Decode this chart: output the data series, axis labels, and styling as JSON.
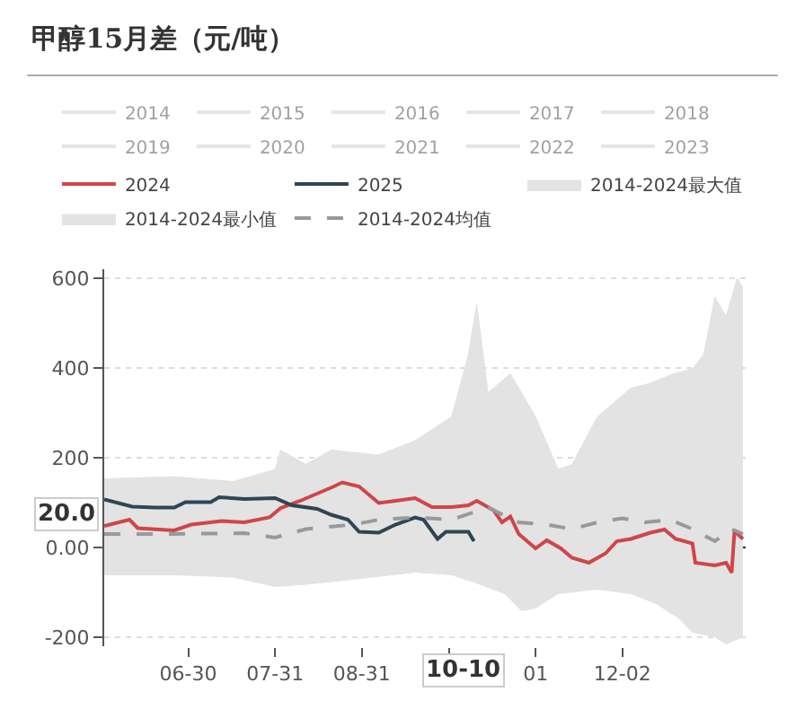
{
  "chart_data": {
    "type": "line",
    "title": "甲醇15月差（元/吨）",
    "ylim": [
      -220,
      620
    ],
    "yticks": [
      -200,
      {
        "value": 0,
        "label": "0.00"
      },
      200,
      400,
      600
    ],
    "xlim": [
      "2024-05-31",
      "2025-01-15"
    ],
    "xticks": [
      {
        "value": "2024-06-30",
        "label": "06-30"
      },
      {
        "value": "2024-07-31",
        "label": "07-31"
      },
      {
        "value": "2024-08-31",
        "label": "08-31"
      },
      {
        "value": "2024-10-01",
        "label": null
      },
      {
        "value": "2024-11-01",
        "label": "01"
      },
      {
        "value": "2024-12-02",
        "label": "12-02"
      }
    ],
    "grid": "y",
    "legend": "top",
    "marker": "none",
    "annotations": [
      "20.0",
      "10-10"
    ],
    "series": [
      {
        "name": "2014",
        "color": "#cccccc"
      },
      {
        "name": "2015",
        "color": "#cccccc"
      },
      {
        "name": "2016",
        "color": "#cccccc"
      },
      {
        "name": "2017",
        "color": "#cccccc"
      },
      {
        "name": "2018",
        "color": "#cccccc"
      },
      {
        "name": "2019",
        "color": "#cccccc"
      },
      {
        "name": "2020",
        "color": "#cccccc"
      },
      {
        "name": "2021",
        "color": "#cccccc"
      },
      {
        "name": "2022",
        "color": "#cccccc"
      },
      {
        "name": "2023",
        "color": "#cccccc"
      },
      {
        "name": "2024",
        "color": "#d0454a",
        "x": [
          "2024-05-31",
          "2024-06-09",
          "2024-06-12",
          "2024-06-25",
          "2024-07-01",
          "2024-07-12",
          "2024-07-20",
          "2024-07-29",
          "2024-08-02",
          "2024-08-09",
          "2024-08-15",
          "2024-08-21",
          "2024-08-24",
          "2024-08-30",
          "2024-09-06",
          "2024-09-12",
          "2024-09-19",
          "2024-09-25",
          "2024-10-02",
          "2024-10-08",
          "2024-10-11",
          "2024-10-17",
          "2024-10-20",
          "2024-10-23",
          "2024-10-26",
          "2024-11-01",
          "2024-11-05",
          "2024-11-10",
          "2024-11-14",
          "2024-11-20",
          "2024-11-26",
          "2024-11-30",
          "2024-12-05",
          "2024-12-12",
          "2024-12-17",
          "2024-12-21",
          "2024-12-27",
          "2024-12-28",
          "2025-01-04",
          "2025-01-08",
          "2025-01-10",
          "2025-01-11",
          "2025-01-14"
        ],
        "values": [
          48,
          62,
          43,
          38,
          51,
          59,
          56,
          67,
          88,
          104,
          120,
          136,
          145,
          136,
          99,
          104,
          110,
          90,
          90,
          94,
          104,
          83,
          56,
          69,
          30,
          -2,
          16,
          -2,
          -23,
          -34,
          -13,
          14,
          19,
          33,
          40,
          19,
          9,
          -34,
          -40,
          -34,
          -56,
          37,
          19
        ]
      },
      {
        "name": "2025",
        "color": "#2f4554",
        "x": [
          "2024-05-31",
          "2024-06-10",
          "2024-06-18",
          "2024-06-25",
          "2024-06-29",
          "2024-07-08",
          "2024-07-11",
          "2024-07-20",
          "2024-07-31",
          "2024-08-06",
          "2024-08-15",
          "2024-08-20",
          "2024-08-26",
          "2024-08-30",
          "2024-09-06",
          "2024-09-12",
          "2024-09-19",
          "2024-09-22",
          "2024-09-27",
          "2024-09-30",
          "2024-10-08",
          "2024-10-10"
        ],
        "values": [
          107,
          91,
          89,
          89,
          101,
          101,
          112,
          108,
          110,
          94,
          86,
          73,
          62,
          35,
          33,
          51,
          67,
          62,
          19,
          35,
          35,
          14
        ]
      },
      {
        "name": "2014-2024最大值",
        "type": "area",
        "color": "#e3e3e3",
        "x": [
          "2024-05-31",
          "2024-06-25",
          "2024-07-16",
          "2024-07-31",
          "2024-08-02",
          "2024-08-11",
          "2024-08-20",
          "2024-09-06",
          "2024-09-19",
          "2024-10-02",
          "2024-10-08",
          "2024-10-11",
          "2024-10-15",
          "2024-10-23",
          "2024-11-01",
          "2024-11-09",
          "2024-11-14",
          "2024-11-23",
          "2024-12-05",
          "2024-12-12",
          "2024-12-20",
          "2024-12-27",
          "2024-12-31",
          "2025-01-04",
          "2025-01-08",
          "2025-01-12",
          "2025-01-14"
        ],
        "values": [
          153,
          158,
          147,
          174,
          217,
          185,
          217,
          206,
          238,
          291,
          430,
          542,
          345,
          387,
          291,
          174,
          185,
          291,
          355,
          366,
          387,
          398,
          430,
          558,
          515,
          600,
          579
        ]
      },
      {
        "name": "2014-2024最小值",
        "type": "area",
        "color": "#e3e3e3",
        "x": [
          "2024-05-31",
          "2024-06-25",
          "2024-07-16",
          "2024-07-31",
          "2024-08-11",
          "2024-08-28",
          "2024-09-19",
          "2024-10-02",
          "2024-10-10",
          "2024-10-21",
          "2024-10-27",
          "2024-11-01",
          "2024-11-09",
          "2024-11-23",
          "2024-12-05",
          "2024-12-14",
          "2024-12-22",
          "2024-12-27",
          "2025-01-04",
          "2025-01-08",
          "2025-01-14"
        ],
        "values": [
          -61,
          -61,
          -66,
          -87,
          -82,
          -71,
          -55,
          -61,
          -77,
          -103,
          -141,
          -135,
          -103,
          -93,
          -103,
          -125,
          -157,
          -189,
          -199,
          -215,
          -199
        ]
      },
      {
        "name": "2014-2024均值",
        "color": "#999999",
        "line_style": "dashed",
        "x": [
          "2024-05-31",
          "2024-06-25",
          "2024-07-20",
          "2024-07-31",
          "2024-08-11",
          "2024-08-28",
          "2024-09-06",
          "2024-09-19",
          "2024-10-02",
          "2024-10-15",
          "2024-10-26",
          "2024-11-05",
          "2024-11-14",
          "2024-11-23",
          "2024-12-02",
          "2024-12-10",
          "2024-12-19",
          "2024-12-27",
          "2025-01-04",
          "2025-01-10",
          "2025-01-14"
        ],
        "values": [
          30,
          30,
          32,
          22,
          41,
          51,
          62,
          67,
          62,
          89,
          56,
          51,
          41,
          56,
          65,
          56,
          62,
          41,
          14,
          41,
          30
        ]
      }
    ]
  }
}
